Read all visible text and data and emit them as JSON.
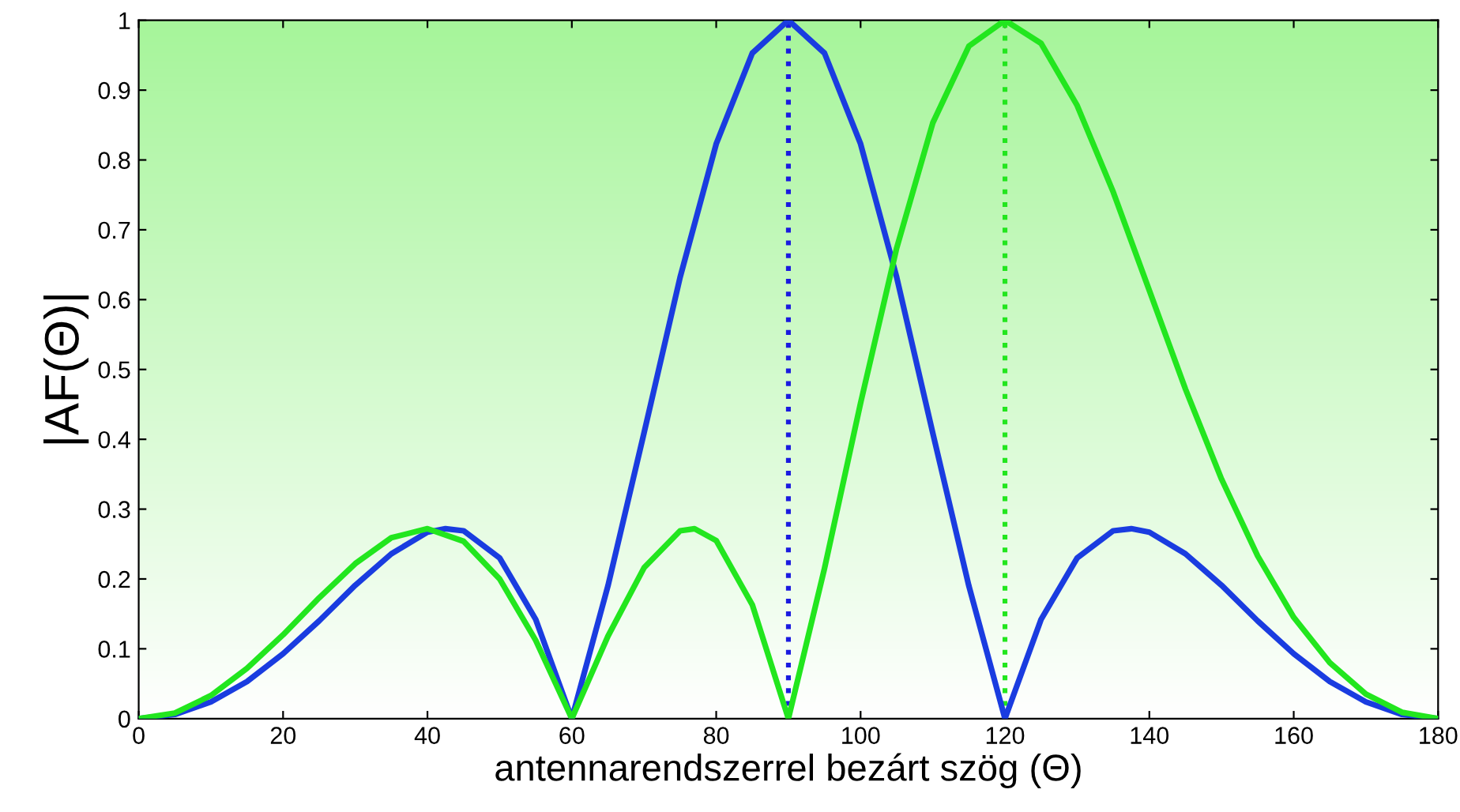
{
  "chart_data": {
    "type": "line",
    "xlabel": "antennarendszerrel bezárt szög (Θ)",
    "ylabel": "|AF(Θ)|",
    "xlim": [
      0,
      180
    ],
    "ylim": [
      0,
      1
    ],
    "xticks": [
      0,
      20,
      40,
      60,
      80,
      100,
      120,
      140,
      160,
      180
    ],
    "yticks": [
      0,
      0.1,
      0.2,
      0.3,
      0.4,
      0.5,
      0.6,
      0.7,
      0.8,
      0.9,
      1
    ],
    "grid": false,
    "legend": false,
    "marker": "none",
    "line_style": "solid",
    "series": [
      {
        "color": "#1a3ce0",
        "x": [
          0,
          5,
          10,
          15,
          20,
          25,
          30,
          35,
          40,
          42.5,
          45,
          50,
          55,
          60,
          65,
          70,
          75,
          80,
          85,
          90,
          95,
          100,
          105,
          110,
          115,
          120,
          125,
          130,
          135,
          137.5,
          140,
          145,
          150,
          155,
          160,
          165,
          170,
          175,
          180
        ],
        "values": [
          0,
          0.006,
          0.024,
          0.053,
          0.093,
          0.14,
          0.191,
          0.236,
          0.267,
          0.272,
          0.269,
          0.23,
          0.142,
          0,
          0.19,
          0.409,
          0.632,
          0.823,
          0.953,
          1,
          0.953,
          0.823,
          0.632,
          0.409,
          0.19,
          0,
          0.142,
          0.23,
          0.269,
          0.272,
          0.267,
          0.236,
          0.191,
          0.14,
          0.093,
          0.053,
          0.024,
          0.006,
          0
        ]
      },
      {
        "color": "#22e61e",
        "x": [
          0,
          5,
          10,
          15,
          20,
          25,
          30,
          35,
          40,
          45,
          50,
          55,
          60,
          65,
          70,
          75,
          77,
          80,
          85,
          90,
          95,
          100,
          105,
          110,
          115,
          120,
          125,
          130,
          135,
          140,
          145,
          150,
          155,
          160,
          165,
          170,
          175,
          180
        ],
        "values": [
          0,
          0.008,
          0.033,
          0.072,
          0.12,
          0.173,
          0.222,
          0.259,
          0.272,
          0.254,
          0.2,
          0.112,
          0,
          0.118,
          0.216,
          0.269,
          0.272,
          0.255,
          0.163,
          0,
          0.215,
          0.452,
          0.674,
          0.853,
          0.963,
          1,
          0.967,
          0.878,
          0.754,
          0.613,
          0.472,
          0.343,
          0.233,
          0.145,
          0.08,
          0.035,
          0.009,
          0
        ]
      }
    ],
    "ref_lines": [
      {
        "axis": "x",
        "value": 90,
        "color": "#1a1ae0",
        "line_style": "dotted"
      },
      {
        "axis": "x",
        "value": 120,
        "color": "#22e61e",
        "line_style": "dotted"
      }
    ]
  }
}
